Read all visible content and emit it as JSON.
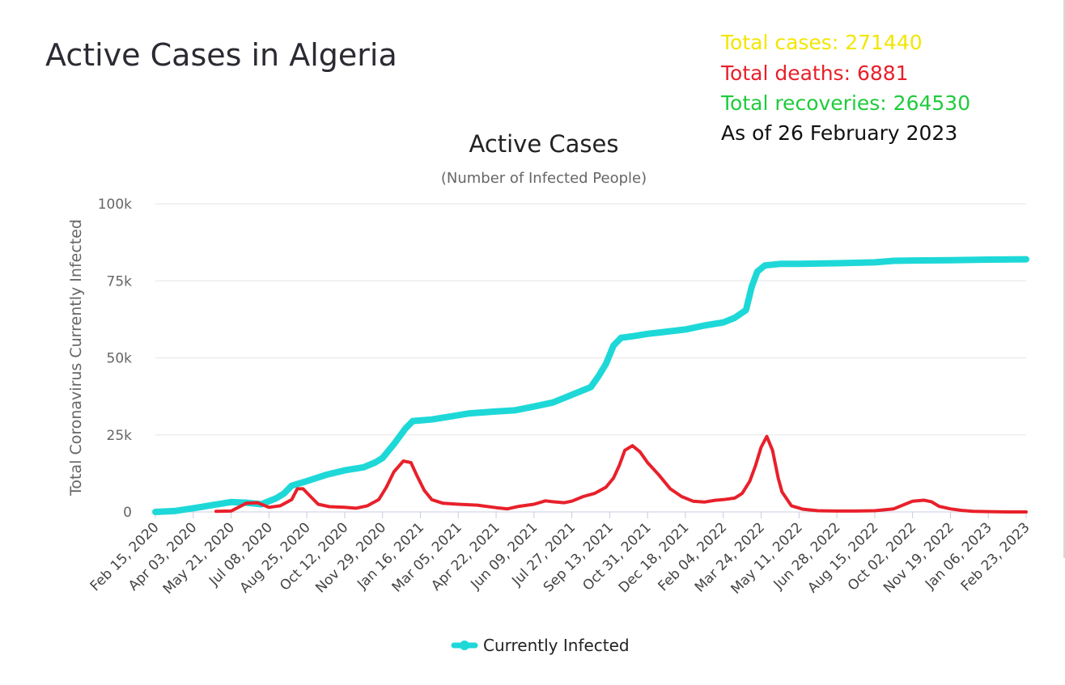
{
  "page": {
    "title": "Active Cases in Algeria"
  },
  "stats": {
    "cases": {
      "text": "Total cases: 271440",
      "color": "#f2e600"
    },
    "deaths": {
      "text": "Total deaths: 6881",
      "color": "#e8202a"
    },
    "recoveries": {
      "text": "Total recoveries: 264530",
      "color": "#1fcb3c"
    },
    "as_of": {
      "text": "As of 26 February 2023",
      "color": "#111111"
    }
  },
  "chart_data": {
    "type": "line",
    "title": "Active Cases",
    "subtitle": "(Number of Infected People)",
    "ylabel": "Total Coronavirus Currently Infected",
    "xlabel": "",
    "ylim": [
      0,
      100000
    ],
    "yticks": [
      0,
      25000,
      50000,
      75000,
      100000
    ],
    "ytick_labels": [
      "0",
      "25k",
      "50k",
      "75k",
      "100k"
    ],
    "grid": true,
    "legend": "bottom",
    "categories": [
      "Feb 15, 2020",
      "Apr 03, 2020",
      "May 21, 2020",
      "Jul 08, 2020",
      "Aug 25, 2020",
      "Oct 12, 2020",
      "Nov 29, 2020",
      "Jan 16, 2021",
      "Mar 05, 2021",
      "Apr 22, 2021",
      "Jun 09, 2021",
      "Jul 27, 2021",
      "Sep 13, 2021",
      "Oct 31, 2021",
      "Dec 18, 2021",
      "Feb 04, 2022",
      "Mar 24, 2022",
      "May 11, 2022",
      "Jun 28, 2022",
      "Aug 15, 2022",
      "Oct 02, 2022",
      "Nov 19, 2022",
      "Jan 06, 2023",
      "Feb 23, 2023"
    ],
    "series": [
      {
        "name": "Currently Infected",
        "color": "#1ed8d8",
        "in_legend": true,
        "points": [
          [
            0,
            0
          ],
          [
            0.5,
            300
          ],
          [
            1,
            1200
          ],
          [
            1.5,
            2200
          ],
          [
            2,
            3200
          ],
          [
            2.4,
            3000
          ],
          [
            2.8,
            2500
          ],
          [
            3.2,
            4500
          ],
          [
            3.4,
            6000
          ],
          [
            3.6,
            8500
          ],
          [
            4,
            10000
          ],
          [
            4.5,
            12000
          ],
          [
            5,
            13500
          ],
          [
            5.5,
            14500
          ],
          [
            5.8,
            16000
          ],
          [
            6,
            17500
          ],
          [
            6.3,
            22000
          ],
          [
            6.6,
            27000
          ],
          [
            6.8,
            29500
          ],
          [
            7.3,
            30000
          ],
          [
            7.8,
            31000
          ],
          [
            8.3,
            32000
          ],
          [
            9,
            32600
          ],
          [
            9.5,
            33000
          ],
          [
            10,
            34200
          ],
          [
            10.5,
            35500
          ],
          [
            11,
            38000
          ],
          [
            11.5,
            40500
          ],
          [
            11.7,
            44000
          ],
          [
            11.9,
            48000
          ],
          [
            12.1,
            54000
          ],
          [
            12.3,
            56500
          ],
          [
            12.6,
            57000
          ],
          [
            13,
            57800
          ],
          [
            13.5,
            58500
          ],
          [
            14,
            59200
          ],
          [
            14.5,
            60500
          ],
          [
            15,
            61500
          ],
          [
            15.3,
            63000
          ],
          [
            15.6,
            65500
          ],
          [
            15.75,
            73000
          ],
          [
            15.9,
            78000
          ],
          [
            16.1,
            80000
          ],
          [
            16.5,
            80500
          ],
          [
            17,
            80500
          ],
          [
            18,
            80700
          ],
          [
            19,
            81000
          ],
          [
            19.5,
            81500
          ],
          [
            20,
            81600
          ],
          [
            21,
            81700
          ],
          [
            22,
            81900
          ],
          [
            23,
            82000
          ]
        ]
      },
      {
        "name": "",
        "color": "#e8202a",
        "in_legend": false,
        "points": [
          [
            1.6,
            200
          ],
          [
            2,
            300
          ],
          [
            2.4,
            2800
          ],
          [
            2.7,
            3000
          ],
          [
            3,
            1500
          ],
          [
            3.3,
            2000
          ],
          [
            3.6,
            4000
          ],
          [
            3.75,
            7500
          ],
          [
            3.9,
            7500
          ],
          [
            4.1,
            5000
          ],
          [
            4.3,
            2500
          ],
          [
            4.6,
            1700
          ],
          [
            5,
            1500
          ],
          [
            5.3,
            1200
          ],
          [
            5.6,
            2000
          ],
          [
            5.9,
            4000
          ],
          [
            6.1,
            8000
          ],
          [
            6.3,
            13000
          ],
          [
            6.55,
            16500
          ],
          [
            6.75,
            16000
          ],
          [
            6.9,
            12000
          ],
          [
            7.1,
            7000
          ],
          [
            7.3,
            4000
          ],
          [
            7.6,
            2800
          ],
          [
            8,
            2500
          ],
          [
            8.5,
            2200
          ],
          [
            9,
            1400
          ],
          [
            9.3,
            1000
          ],
          [
            9.6,
            1800
          ],
          [
            10,
            2500
          ],
          [
            10.3,
            3600
          ],
          [
            10.5,
            3300
          ],
          [
            10.8,
            3000
          ],
          [
            11,
            3500
          ],
          [
            11.3,
            5000
          ],
          [
            11.6,
            6000
          ],
          [
            11.9,
            8000
          ],
          [
            12.1,
            11000
          ],
          [
            12.25,
            15000
          ],
          [
            12.4,
            20000
          ],
          [
            12.6,
            21500
          ],
          [
            12.8,
            19500
          ],
          [
            13,
            16000
          ],
          [
            13.3,
            12000
          ],
          [
            13.6,
            7500
          ],
          [
            13.9,
            5000
          ],
          [
            14.2,
            3500
          ],
          [
            14.5,
            3200
          ],
          [
            14.8,
            3800
          ],
          [
            15,
            4000
          ],
          [
            15.3,
            4500
          ],
          [
            15.5,
            6000
          ],
          [
            15.7,
            10000
          ],
          [
            15.85,
            15000
          ],
          [
            16,
            21000
          ],
          [
            16.15,
            24500
          ],
          [
            16.3,
            20000
          ],
          [
            16.45,
            11000
          ],
          [
            16.55,
            6500
          ],
          [
            16.8,
            2000
          ],
          [
            17.1,
            900
          ],
          [
            17.5,
            400
          ],
          [
            18,
            300
          ],
          [
            18.5,
            300
          ],
          [
            19,
            400
          ],
          [
            19.5,
            1000
          ],
          [
            19.8,
            2500
          ],
          [
            20,
            3500
          ],
          [
            20.3,
            3800
          ],
          [
            20.5,
            3300
          ],
          [
            20.7,
            1800
          ],
          [
            21,
            1000
          ],
          [
            21.3,
            500
          ],
          [
            21.6,
            200
          ],
          [
            22,
            100
          ],
          [
            22.5,
            0
          ],
          [
            23,
            0
          ]
        ]
      }
    ]
  }
}
